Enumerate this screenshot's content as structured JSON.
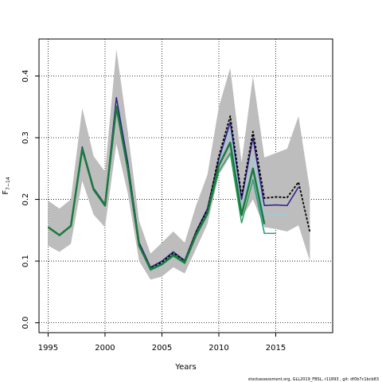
{
  "chart_data": {
    "type": "line",
    "xlabel": "Years",
    "ylabel": "F",
    "ylabel_sub": "7−14",
    "xlim": [
      1994.2,
      2020.0
    ],
    "ylim": [
      -0.016,
      0.46
    ],
    "x_ticks": [
      1995,
      2000,
      2005,
      2010,
      2015
    ],
    "y_ticks": [
      0.0,
      0.1,
      0.2,
      0.3,
      0.4
    ],
    "grid": true,
    "footer": "stockassessment.org, GLL2019_FBSL, r11893 , git: df0b7c1bcb83",
    "band": {
      "color": "#bdbdbd",
      "x": [
        1995,
        1996,
        1997,
        1998,
        1999,
        2000,
        2001,
        2002,
        2003,
        2004,
        2005,
        2006,
        2007,
        2008,
        2009,
        2010,
        2011,
        2012,
        2013,
        2014,
        2015,
        2016,
        2017,
        2018
      ],
      "upper": [
        0.198,
        0.185,
        0.2,
        0.348,
        0.27,
        0.245,
        0.443,
        0.31,
        0.165,
        0.112,
        0.13,
        0.148,
        0.13,
        0.19,
        0.24,
        0.35,
        0.413,
        0.26,
        0.4,
        0.268,
        0.275,
        0.282,
        0.335,
        0.215
      ],
      "lower": [
        0.125,
        0.115,
        0.128,
        0.23,
        0.175,
        0.155,
        0.29,
        0.21,
        0.1,
        0.07,
        0.075,
        0.09,
        0.08,
        0.12,
        0.16,
        0.24,
        0.27,
        0.17,
        0.2,
        0.155,
        0.152,
        0.148,
        0.158,
        0.1
      ]
    },
    "series": [
      {
        "color": "#9ecae1",
        "dash": "",
        "width": 1.5,
        "x": [
          1995,
          1996,
          1997,
          1998,
          1999,
          2000,
          2001,
          2002,
          2003,
          2004,
          2005,
          2006,
          2007,
          2008,
          2009,
          2010,
          2011,
          2012,
          2013,
          2014,
          2015,
          2016
        ],
        "values": [
          0.155,
          0.143,
          0.157,
          0.28,
          0.215,
          0.19,
          0.345,
          0.25,
          0.125,
          0.085,
          0.093,
          0.108,
          0.096,
          0.14,
          0.175,
          0.26,
          0.31,
          0.18,
          0.27,
          0.175,
          0.175,
          0.176
        ]
      },
      {
        "color": "#2ca25f",
        "dash": "",
        "width": 1.5,
        "x": [
          1995,
          1996,
          1997,
          1998,
          1999,
          2000,
          2001,
          2002,
          2003,
          2004,
          2005,
          2006,
          2007,
          2008,
          2009,
          2010,
          2011,
          2012,
          2013,
          2014,
          2015
        ],
        "values": [
          0.155,
          0.142,
          0.157,
          0.28,
          0.215,
          0.19,
          0.35,
          0.25,
          0.125,
          0.085,
          0.094,
          0.108,
          0.096,
          0.14,
          0.175,
          0.245,
          0.275,
          0.162,
          0.232,
          0.145,
          0.145
        ]
      },
      {
        "color": "#2c1f8c",
        "dash": "",
        "width": 1.5,
        "x": [
          1995,
          1996,
          1997,
          1998,
          1999,
          2000,
          2001,
          2002,
          2003,
          2004,
          2005,
          2006,
          2007,
          2008,
          2009,
          2010,
          2011,
          2012,
          2013,
          2014,
          2015,
          2016,
          2017
        ],
        "values": [
          0.155,
          0.142,
          0.157,
          0.285,
          0.218,
          0.192,
          0.365,
          0.26,
          0.13,
          0.09,
          0.1,
          0.115,
          0.101,
          0.148,
          0.185,
          0.265,
          0.325,
          0.2,
          0.3,
          0.19,
          0.191,
          0.19,
          0.22
        ]
      },
      {
        "color": "#000000",
        "dash": "3,2",
        "width": 1.8,
        "x": [
          1995,
          1996,
          1997,
          1998,
          1999,
          2000,
          2001,
          2002,
          2003,
          2004,
          2005,
          2006,
          2007,
          2008,
          2009,
          2010,
          2011,
          2012,
          2013,
          2014,
          2015,
          2016,
          2017,
          2018
        ],
        "values": [
          0.155,
          0.142,
          0.157,
          0.283,
          0.217,
          0.191,
          0.352,
          0.255,
          0.128,
          0.088,
          0.098,
          0.113,
          0.1,
          0.147,
          0.183,
          0.27,
          0.335,
          0.205,
          0.31,
          0.202,
          0.204,
          0.203,
          0.228,
          0.147
        ]
      },
      {
        "color": "#1a7a3e",
        "dash": "",
        "width": 2.5,
        "x": [
          1995,
          1996,
          1997,
          1998,
          1999,
          2000,
          2001,
          2002,
          2003,
          2004,
          2005,
          2006,
          2007,
          2008,
          2009,
          2010,
          2011,
          2012,
          2013,
          2014
        ],
        "values": [
          0.155,
          0.142,
          0.157,
          0.282,
          0.216,
          0.19,
          0.35,
          0.25,
          0.125,
          0.087,
          0.095,
          0.11,
          0.098,
          0.143,
          0.178,
          0.255,
          0.292,
          0.175,
          0.25,
          0.16
        ]
      },
      {
        "color": "#31a08a",
        "dash": "",
        "width": 1.5,
        "x": [
          2013,
          2014,
          2015
        ],
        "values": [
          0.232,
          0.145,
          0.145
        ]
      }
    ]
  }
}
